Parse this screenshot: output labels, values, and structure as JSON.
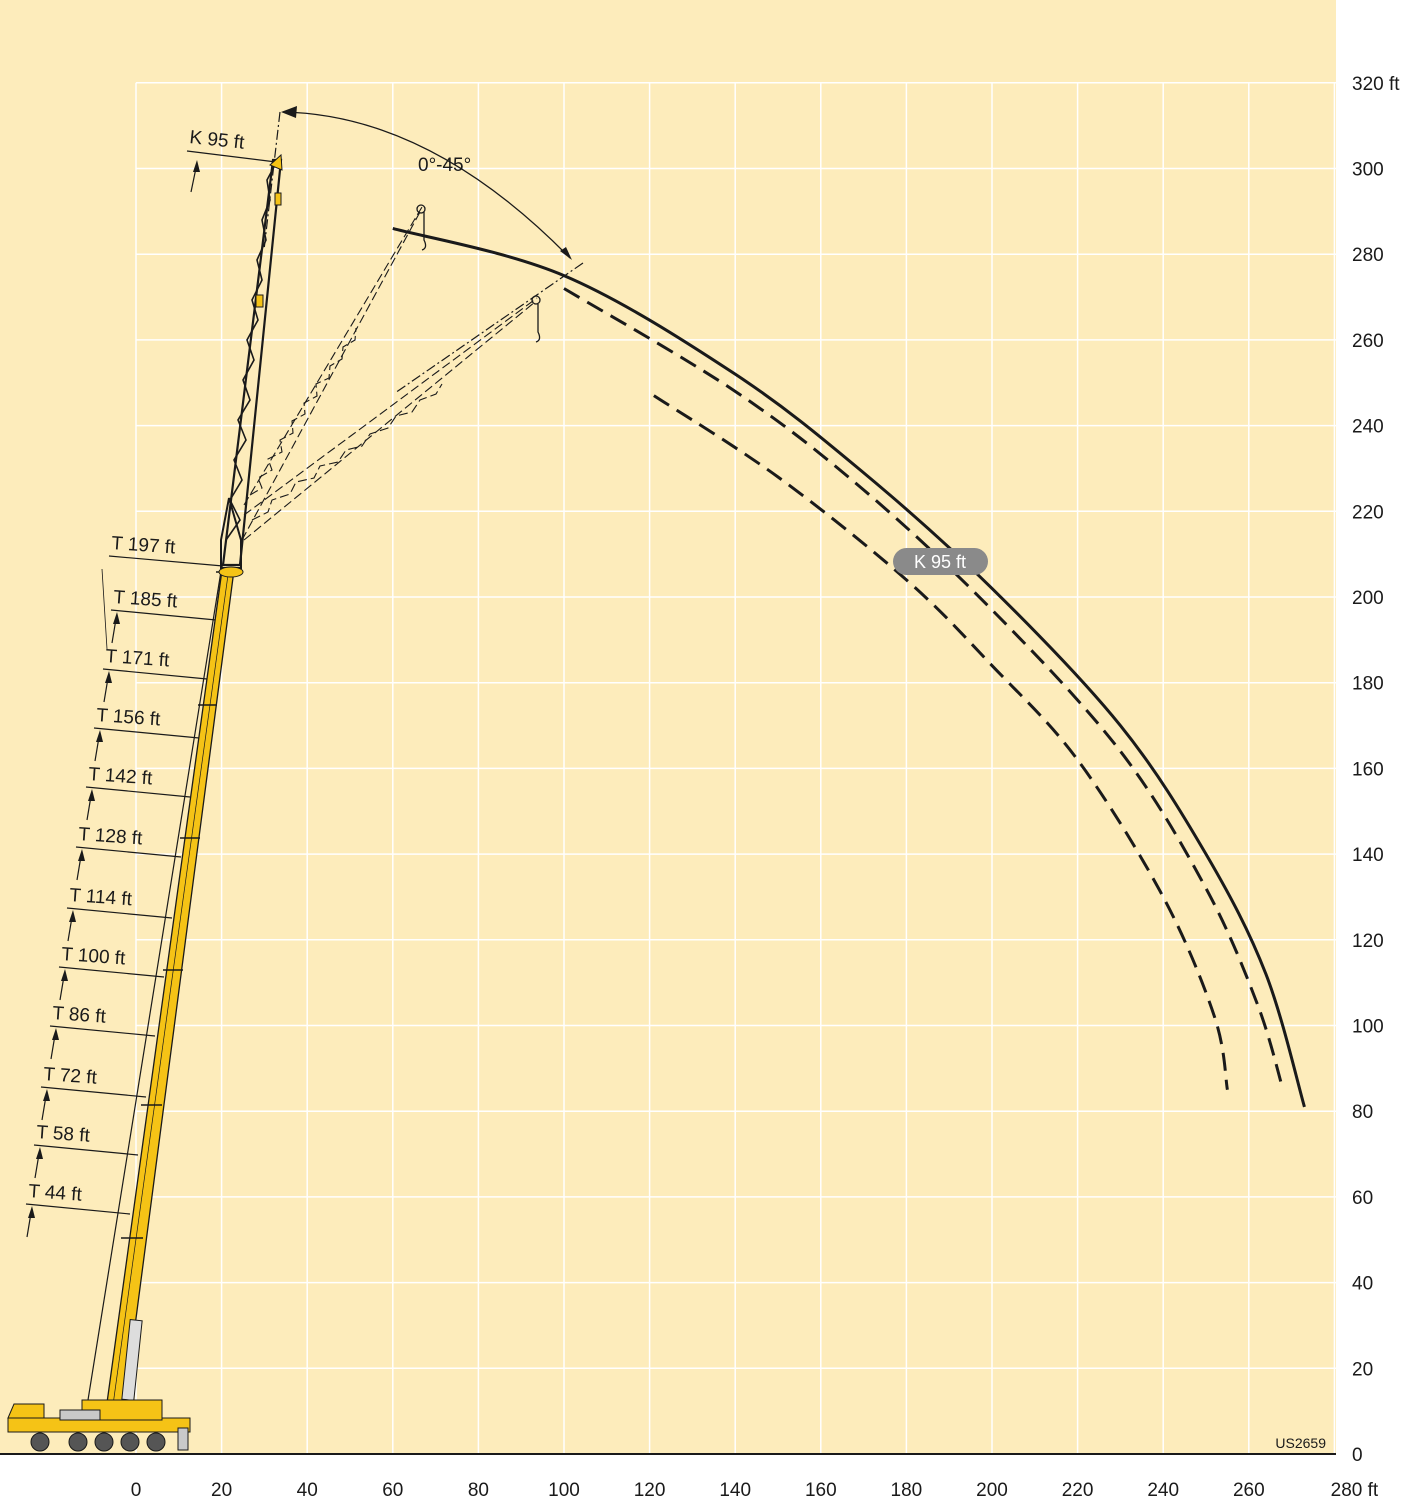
{
  "diagram": {
    "code": "US2659",
    "angle_label": "0°-45°",
    "pill_label": "K 95 ft",
    "jib_label": "K 95 ft",
    "x_ticks": [
      "0",
      "20",
      "40",
      "60",
      "80",
      "100",
      "120",
      "140",
      "160",
      "180",
      "200",
      "220",
      "240",
      "260",
      "280 ft"
    ],
    "y_ticks": [
      "0",
      "20",
      "40",
      "60",
      "80",
      "100",
      "120",
      "140",
      "160",
      "180",
      "200",
      "220",
      "240",
      "260",
      "280",
      "300",
      "320 ft"
    ],
    "boom_labels": [
      "T 44 ft",
      "T 58 ft",
      "T 72 ft",
      "T 86 ft",
      "T 100 ft",
      "T 114 ft",
      "T 128 ft",
      "T 142 ft",
      "T 156 ft",
      "T 171 ft",
      "T 185 ft",
      "T 197 ft"
    ],
    "curves": {
      "solid_envelope": [
        [
          60,
          286
        ],
        [
          100,
          275
        ],
        [
          140,
          252
        ],
        [
          170,
          229
        ],
        [
          200,
          202
        ],
        [
          230,
          170
        ],
        [
          250,
          140
        ],
        [
          264,
          112
        ],
        [
          273,
          81
        ]
      ],
      "dashed_outer": [
        [
          100,
          272
        ],
        [
          140,
          248
        ],
        [
          170,
          225
        ],
        [
          200,
          197
        ],
        [
          230,
          164
        ],
        [
          250,
          132
        ],
        [
          262,
          105
        ],
        [
          268,
          85
        ]
      ],
      "dashed_inner": [
        [
          121,
          247
        ],
        [
          150,
          228
        ],
        [
          180,
          204
        ],
        [
          200,
          184
        ],
        [
          220,
          162
        ],
        [
          240,
          130
        ],
        [
          252,
          102
        ],
        [
          255,
          85
        ]
      ]
    },
    "colors": {
      "background": "#fdecbb",
      "grid": "#ffffff",
      "boom": "#f5c316",
      "line": "#1a1a1a",
      "pill": "#8a8a8a"
    }
  }
}
